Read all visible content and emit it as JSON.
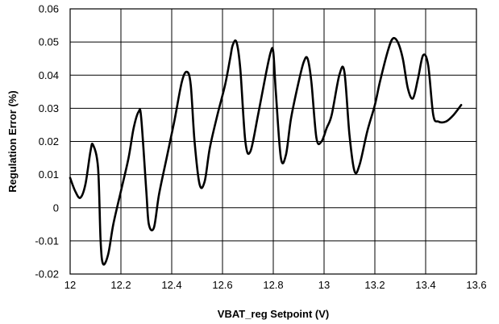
{
  "chart_data": {
    "type": "line",
    "title": "",
    "xlabel": "VBAT_reg Setpoint (V)",
    "ylabel": "Regulation Error (%)",
    "xlim": [
      12,
      13.6
    ],
    "ylim": [
      -0.02,
      0.06
    ],
    "x_ticks": [
      12,
      12.2,
      12.4,
      12.6,
      12.8,
      13,
      13.2,
      13.4,
      13.6
    ],
    "x_tick_labels": [
      "12",
      "12.2",
      "12.4",
      "12.6",
      "12.8",
      "13",
      "13.2",
      "13.4",
      "13.6"
    ],
    "y_ticks": [
      -0.02,
      -0.01,
      0,
      0.01,
      0.02,
      0.03,
      0.04,
      0.05,
      0.06
    ],
    "y_tick_labels": [
      "-0.02",
      "-0.01",
      "0",
      "0.01",
      "0.02",
      "0.03",
      "0.04",
      "0.05",
      "0.06"
    ],
    "grid": true,
    "legend": "none",
    "series": [
      {
        "x": [
          12.0,
          12.02,
          12.04,
          12.06,
          12.08,
          12.09,
          12.11,
          12.12,
          12.13,
          12.15,
          12.17,
          12.2,
          12.23,
          12.25,
          12.27,
          12.28,
          12.3,
          12.31,
          12.33,
          12.35,
          12.38,
          12.41,
          12.44,
          12.46,
          12.475,
          12.49,
          12.51,
          12.53,
          12.55,
          12.58,
          12.61,
          12.63,
          12.64,
          12.655,
          12.67,
          12.69,
          12.71,
          12.74,
          12.77,
          12.79,
          12.8,
          12.81,
          12.83,
          12.85,
          12.87,
          12.9,
          12.92,
          12.935,
          12.95,
          12.97,
          12.99,
          13.01,
          13.03,
          13.06,
          13.08,
          13.1,
          13.12,
          13.14,
          13.17,
          13.2,
          13.22,
          13.25,
          13.27,
          13.29,
          13.31,
          13.33,
          13.35,
          13.37,
          13.39,
          13.41,
          13.43,
          13.45,
          13.48,
          13.51,
          13.54
        ],
        "y": [
          0.009,
          0.005,
          0.003,
          0.007,
          0.017,
          0.019,
          0.012,
          -0.01,
          -0.017,
          -0.014,
          -0.005,
          0.005,
          0.015,
          0.024,
          0.029,
          0.027,
          0.005,
          -0.005,
          -0.006,
          0.004,
          0.015,
          0.026,
          0.038,
          0.041,
          0.037,
          0.02,
          0.007,
          0.008,
          0.018,
          0.028,
          0.037,
          0.045,
          0.049,
          0.05,
          0.042,
          0.02,
          0.017,
          0.028,
          0.04,
          0.047,
          0.047,
          0.035,
          0.015,
          0.016,
          0.027,
          0.038,
          0.044,
          0.045,
          0.038,
          0.021,
          0.02,
          0.024,
          0.028,
          0.04,
          0.041,
          0.022,
          0.011,
          0.013,
          0.023,
          0.031,
          0.038,
          0.047,
          0.051,
          0.05,
          0.045,
          0.036,
          0.033,
          0.039,
          0.046,
          0.043,
          0.028,
          0.026,
          0.026,
          0.028,
          0.031
        ]
      }
    ]
  }
}
